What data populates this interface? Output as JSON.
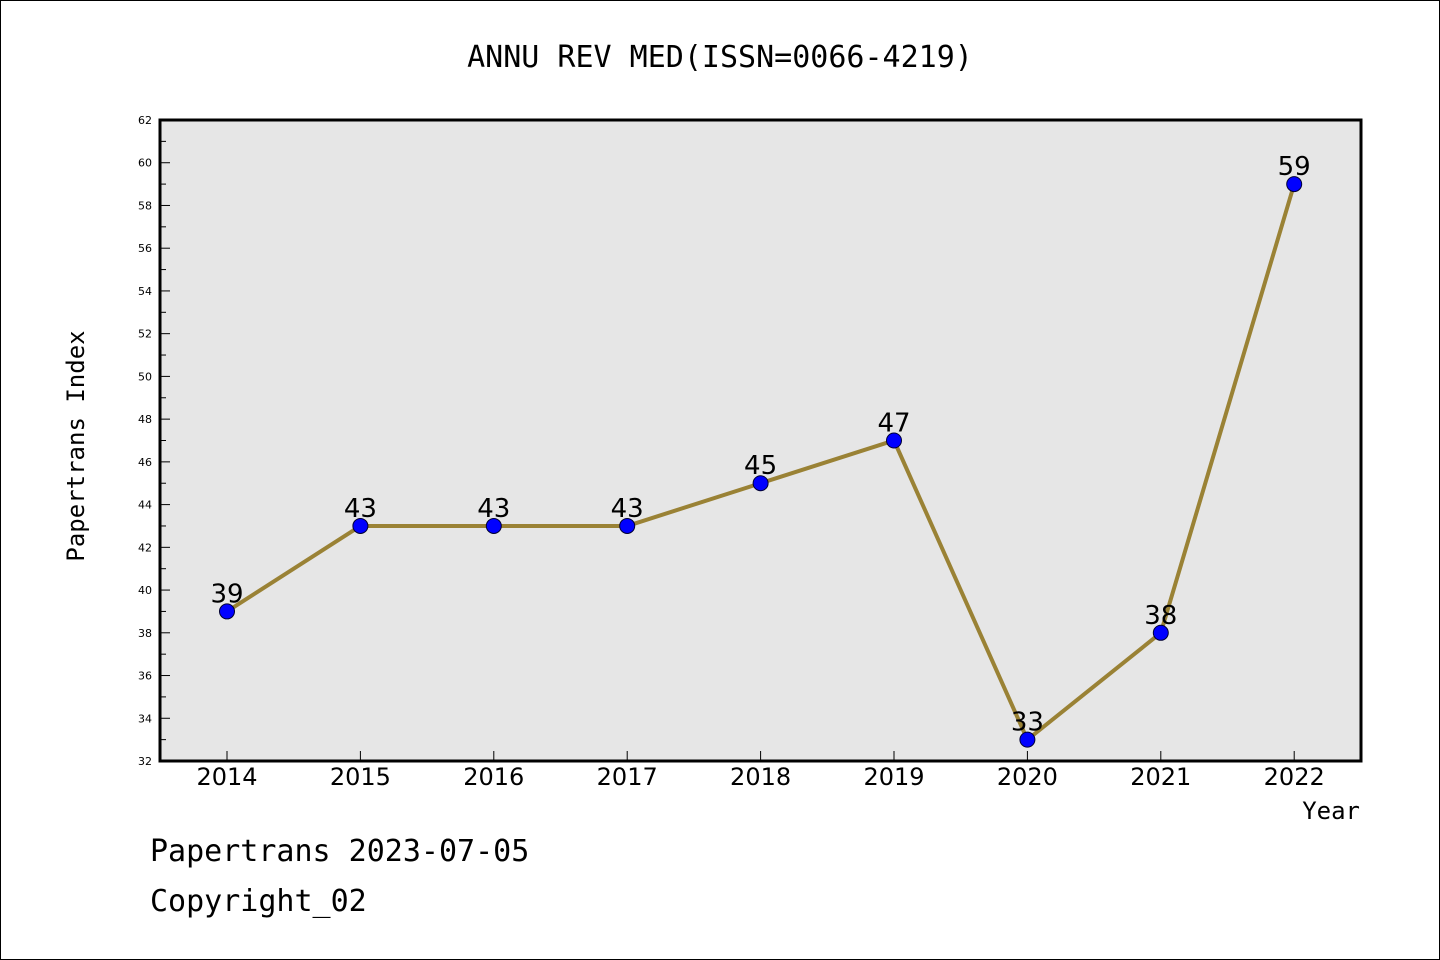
{
  "chart_data": {
    "type": "line",
    "title": "ANNU REV MED(ISSN=0066-4219)",
    "xlabel": "Year",
    "ylabel": "Papertrans Index",
    "categories": [
      "2014",
      "2015",
      "2016",
      "2017",
      "2018",
      "2019",
      "2020",
      "2021",
      "2022"
    ],
    "values": [
      39,
      43,
      43,
      43,
      45,
      47,
      33,
      38,
      59
    ],
    "ylim": [
      32,
      62
    ],
    "yticks": [
      32,
      34,
      36,
      38,
      40,
      42,
      44,
      46,
      48,
      50,
      52,
      54,
      56,
      58,
      60,
      62
    ],
    "grid": false,
    "line_color": "#9a8235",
    "marker_color": "#0000ff",
    "plot_background": "#e6e6e6"
  },
  "footer": {
    "line1": "Papertrans 2023-07-05",
    "line2": "Copyright_02"
  }
}
